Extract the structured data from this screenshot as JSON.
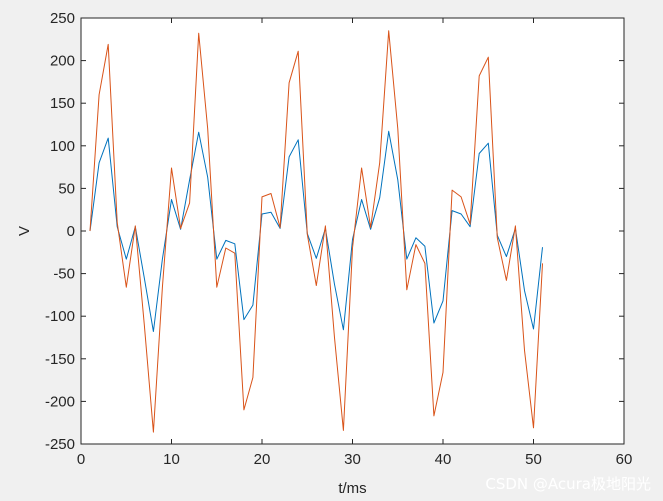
{
  "chart_data": {
    "type": "line",
    "title": "",
    "xlabel": "t/ms",
    "ylabel": "V",
    "xlim": [
      0,
      60
    ],
    "ylim": [
      -250,
      250
    ],
    "xticks": [
      0,
      10,
      20,
      30,
      40,
      50,
      60
    ],
    "yticks": [
      -250,
      -200,
      -150,
      -100,
      -50,
      0,
      50,
      100,
      150,
      200,
      250
    ],
    "grid": false,
    "legend": "none",
    "x": [
      1,
      2,
      3,
      4,
      5,
      6,
      7,
      8,
      9,
      10,
      11,
      12,
      13,
      14,
      15,
      16,
      17,
      18,
      19,
      20,
      21,
      22,
      23,
      24,
      25,
      26,
      27,
      28,
      29,
      30,
      31,
      32,
      33,
      34,
      35,
      36,
      37,
      38,
      39,
      40,
      41,
      42,
      43,
      44,
      45,
      46,
      47,
      48,
      49,
      50,
      51
    ],
    "series": [
      {
        "color": "#0072bd",
        "values": [
          0,
          80,
          109,
          5,
          -33,
          5,
          -55,
          -118,
          -33,
          37,
          2,
          60,
          116,
          63,
          -33,
          -11,
          -15,
          -104,
          -87,
          20,
          22,
          3,
          87,
          107,
          -3,
          -32,
          3,
          -62,
          -116,
          -10,
          37,
          2,
          39,
          117,
          60,
          -33,
          -8,
          -18,
          -108,
          -82,
          24,
          20,
          5,
          91,
          103,
          -5,
          -30,
          3,
          -70,
          -115,
          -19
        ]
      },
      {
        "color": "#d95319",
        "values": [
          0,
          160,
          219,
          10,
          -66,
          6,
          -110,
          -236,
          -66,
          74,
          3,
          33,
          232,
          120,
          -66,
          -20,
          -26,
          -210,
          -172,
          40,
          44,
          4,
          174,
          211,
          -4,
          -64,
          6,
          -124,
          -234,
          -20,
          74,
          4,
          80,
          235,
          120,
          -69,
          -16,
          -38,
          -217,
          -166,
          48,
          40,
          8,
          182,
          204,
          -8,
          -58,
          6,
          -140,
          -231,
          -38
        ]
      }
    ]
  },
  "watermark": "CSDN @Acura极地阳光"
}
